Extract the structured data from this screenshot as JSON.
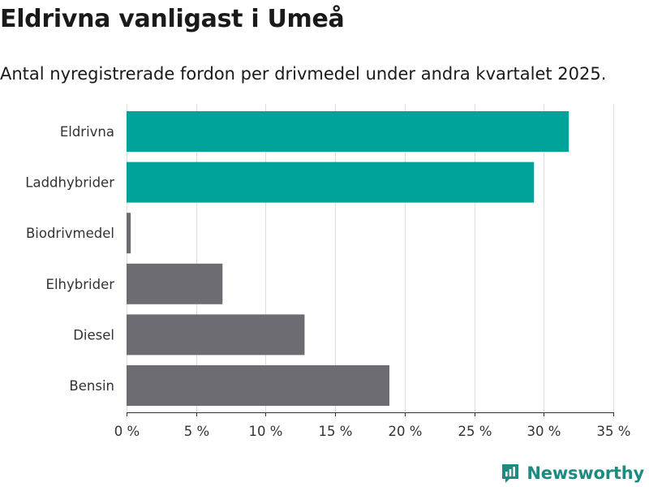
{
  "title": "Eldrivna vanligast i Umeå",
  "subtitle": "Antal nyregistrerade fordon per drivmedel under andra kvartalet 2025.",
  "brand": {
    "name": "Newsworthy",
    "icon": "newsworthy-logo-icon"
  },
  "colors": {
    "highlight": "#00a39a",
    "default": "#6d6c72",
    "grid": "#dddddd",
    "axis": "#333333",
    "brand": "#1f8a80"
  },
  "chart_data": {
    "type": "bar",
    "orientation": "horizontal",
    "categories": [
      "Eldrivna",
      "Laddhybrider",
      "Biodrivmedel",
      "Elhybrider",
      "Diesel",
      "Bensin"
    ],
    "values": [
      31.8,
      29.3,
      0.3,
      6.9,
      12.8,
      18.9
    ],
    "highlighted": [
      true,
      true,
      false,
      false,
      false,
      false
    ],
    "xlim": [
      0,
      35
    ],
    "xticks": [
      0,
      5,
      10,
      15,
      20,
      25,
      30,
      35
    ],
    "xtick_labels": [
      "0 %",
      "5 %",
      "10 %",
      "15 %",
      "20 %",
      "25 %",
      "30 %",
      "35 %"
    ],
    "grid": true,
    "legend": "none"
  }
}
